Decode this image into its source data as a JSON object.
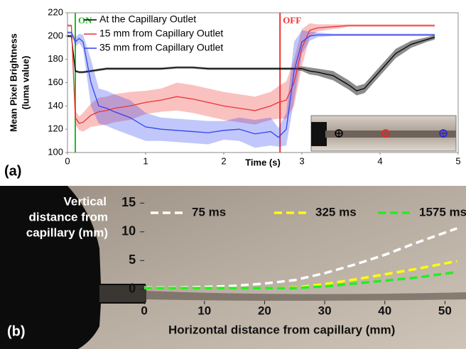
{
  "chart_data": [
    {
      "type": "line",
      "panel_label": "(a)",
      "ylabel": [
        "Mean Pixel Brightness",
        "(luma value)"
      ],
      "xlabel": "Time (s)",
      "xlim": [
        0,
        5
      ],
      "xticks": [
        0,
        1,
        2,
        3,
        4,
        5
      ],
      "ylim": [
        100,
        220
      ],
      "yticks": [
        100,
        120,
        140,
        160,
        180,
        200,
        220
      ],
      "annotations": [
        {
          "text": "ON",
          "x": 0.1,
          "color": "#22bb22"
        },
        {
          "text": "OFF",
          "x": 2.72,
          "color": "#ee3333"
        }
      ],
      "x": [
        0,
        0.05,
        0.1,
        0.15,
        0.2,
        0.3,
        0.4,
        0.5,
        0.6,
        0.8,
        1.0,
        1.2,
        1.4,
        1.6,
        1.8,
        2.0,
        2.2,
        2.4,
        2.6,
        2.7,
        2.8,
        2.9,
        3.0,
        3.1,
        3.2,
        3.4,
        3.6,
        3.7,
        3.8,
        4.0,
        4.2,
        4.4,
        4.6,
        4.7
      ],
      "series": [
        {
          "name": "At the Capillary Outlet",
          "color": "#000000",
          "values": [
            200,
            200,
            170,
            169,
            169,
            170,
            171,
            172,
            172,
            172,
            172,
            172,
            173,
            173,
            172,
            172,
            172,
            172,
            172,
            172,
            172,
            172,
            172,
            170,
            169,
            166,
            158,
            153,
            155,
            170,
            185,
            193,
            197,
            199
          ],
          "error": [
            1,
            1,
            1,
            1,
            1,
            1,
            1,
            1,
            1,
            1,
            1,
            1,
            1,
            1,
            1,
            1,
            1,
            1,
            1,
            1,
            1,
            1,
            2,
            3,
            3,
            4,
            4,
            4,
            4,
            4,
            4,
            3,
            2,
            2
          ]
        },
        {
          "name": "15 mm from Capillary Outlet",
          "color": "#ee3333",
          "values": [
            209,
            209,
            130,
            125,
            126,
            132,
            135,
            136,
            138,
            140,
            143,
            145,
            148,
            146,
            143,
            140,
            138,
            136,
            140,
            143,
            145,
            160,
            190,
            205,
            207,
            208,
            209,
            209,
            209,
            209,
            209,
            209,
            209,
            209
          ],
          "error": [
            1,
            1,
            6,
            6,
            8,
            10,
            12,
            12,
            12,
            12,
            10,
            10,
            12,
            12,
            12,
            12,
            12,
            12,
            12,
            14,
            16,
            20,
            16,
            6,
            3,
            2,
            1,
            1,
            1,
            1,
            1,
            1,
            1,
            1
          ]
        },
        {
          "name": "35 mm from Capillary Outlet",
          "color": "#3344ee",
          "values": [
            203,
            203,
            195,
            198,
            195,
            160,
            140,
            138,
            135,
            130,
            122,
            120,
            119,
            118,
            117,
            119,
            120,
            116,
            118,
            113,
            120,
            170,
            195,
            200,
            201,
            201,
            201,
            201,
            201,
            201,
            201,
            201,
            201,
            201
          ],
          "error": [
            1,
            1,
            4,
            4,
            6,
            20,
            15,
            15,
            15,
            15,
            12,
            10,
            10,
            10,
            10,
            8,
            10,
            12,
            12,
            8,
            14,
            25,
            10,
            4,
            2,
            1,
            1,
            1,
            1,
            1,
            1,
            1,
            1,
            1
          ]
        }
      ]
    },
    {
      "type": "line",
      "panel_label": "(b)",
      "ylabel": [
        "Vertical",
        "distance from",
        "capillary (mm)"
      ],
      "xlabel": "Horizontal distance from capillary (mm)",
      "xlim": [
        -24,
        53.5
      ],
      "xticks": [
        0,
        10,
        20,
        30,
        40,
        50
      ],
      "ylim": [
        -2,
        18
      ],
      "yticks": [
        0,
        5,
        10,
        15
      ],
      "x": [
        0,
        5,
        10,
        15,
        20,
        25,
        30,
        35,
        40,
        45,
        52
      ],
      "series": [
        {
          "name": "75 ms",
          "color": "#ffffff",
          "values": [
            0.3,
            0.3,
            0.4,
            0.6,
            1.0,
            1.6,
            2.8,
            4.3,
            6.0,
            8.0,
            10.6
          ]
        },
        {
          "name": "325 ms",
          "color": "#ffff00",
          "values": [
            0.2,
            0.2,
            0.2,
            0.2,
            0.2,
            0.3,
            0.9,
            1.7,
            2.6,
            3.5,
            4.9
          ]
        },
        {
          "name": "1575 ms",
          "color": "#22ee22",
          "values": [
            0.2,
            0.2,
            0.2,
            0.2,
            0.2,
            0.2,
            0.5,
            1.0,
            1.5,
            2.0,
            3.0
          ]
        }
      ]
    }
  ]
}
